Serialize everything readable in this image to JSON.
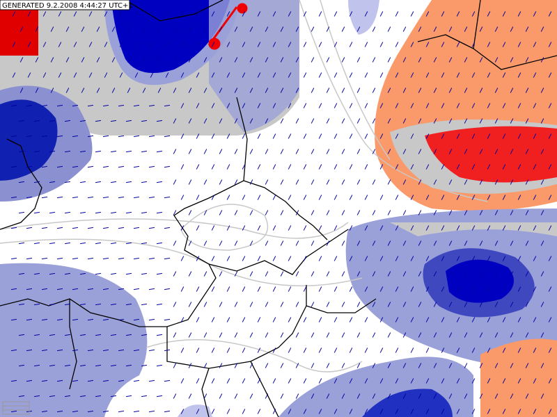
{
  "header": {
    "label": "GENERATED 9.2.2008 4:44:27 UTC+1"
  }
}
